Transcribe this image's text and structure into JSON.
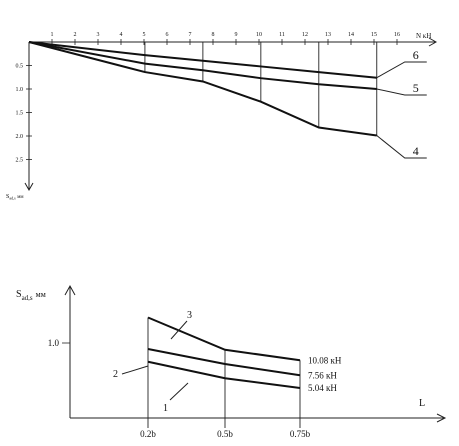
{
  "chart_data": [
    {
      "type": "line",
      "xlabel": "N кН",
      "ylabel": "S",
      "ylabel_sub": "ad,s",
      "ylabel_unit": "мм",
      "x_ticks": [
        1,
        2,
        3,
        4,
        5,
        6,
        7,
        8,
        9,
        10,
        11,
        12,
        13,
        14,
        15,
        16
      ],
      "y_ticks": [
        "0.5",
        "1.0",
        "1.5",
        "2.0",
        "2.5"
      ],
      "xlim": [
        0,
        17.5
      ],
      "ylim": [
        0,
        3.1
      ],
      "y_inverted": true,
      "series": [
        {
          "name": "6",
          "x": [
            0,
            5.04,
            7.56,
            10.08,
            12.6,
            15.12
          ],
          "y": [
            0,
            0.28,
            0.4,
            0.52,
            0.64,
            0.76
          ]
        },
        {
          "name": "5",
          "x": [
            0,
            5.04,
            7.56,
            10.08,
            12.6,
            15.12
          ],
          "y": [
            0,
            0.46,
            0.6,
            0.77,
            0.9,
            1.0
          ]
        },
        {
          "name": "4",
          "x": [
            0,
            5.04,
            7.56,
            10.08,
            12.6,
            15.12
          ],
          "y": [
            0,
            0.64,
            0.84,
            1.27,
            1.82,
            1.99
          ]
        }
      ]
    },
    {
      "type": "line",
      "ylabel": "S",
      "ylabel_sub": "ad,s",
      "ylabel_unit": "мм",
      "xlabel": "L",
      "categories": [
        "0.2b",
        "0.5b",
        "0.75b"
      ],
      "y_ticks": [
        "1.0"
      ],
      "ylim": [
        0,
        1.9
      ],
      "series": [
        {
          "name": "3",
          "end_label": "10.08 кН",
          "values": [
            1.34,
            0.91,
            0.77
          ]
        },
        {
          "name": "2",
          "end_label": "7.56 кН",
          "values": [
            0.92,
            0.72,
            0.57
          ]
        },
        {
          "name": "1",
          "end_label": "5.04 кН",
          "values": [
            0.75,
            0.53,
            0.4
          ]
        }
      ]
    }
  ]
}
